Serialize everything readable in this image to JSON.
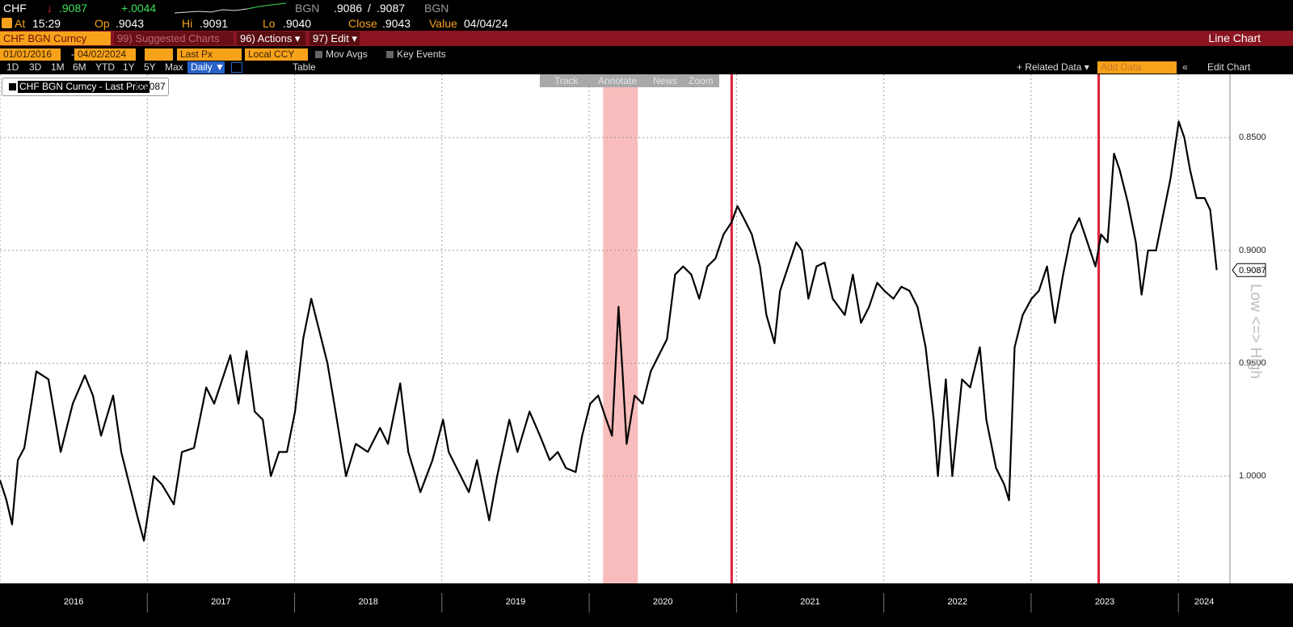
{
  "header": {
    "ticker": "CHF",
    "arrow": "↓",
    "last": ".9087",
    "change": "+.0044",
    "source": "BGN",
    "bid": ".9086",
    "slash": "/",
    "ask": ".9087",
    "source_right": "BGN",
    "stats": [
      {
        "label": "At",
        "value": "15:29"
      },
      {
        "label": "Op",
        "value": ".9043"
      },
      {
        "label": "Hi",
        "value": ".9091"
      },
      {
        "label": "Lo",
        "value": ".9040"
      },
      {
        "label": "Close",
        "value": ".9043"
      },
      {
        "label": "Value",
        "value": "04/04/24"
      }
    ]
  },
  "menu": {
    "security": "CHF BGN Curncy",
    "suggested": "99) Suggested Charts",
    "actions": "96) Actions ▾",
    "edit": "97) Edit ▾",
    "chart_kind": "Line Chart"
  },
  "settings": {
    "start": "01/01/2016",
    "dash": "-",
    "end": "04/02/2024",
    "field": "Last Px",
    "currency": "Local CCY",
    "mov_avgs": "Mov Avgs",
    "key_events": "Key Events"
  },
  "periods": [
    "1D",
    "3D",
    "1M",
    "6M",
    "YTD",
    "1Y",
    "5Y",
    "Max"
  ],
  "frequency": "Daily ▼",
  "table": "Table",
  "related": "+ Related Data ▾",
  "add_data": "Add Data",
  "collapse": "«",
  "edit_chart": "Edit Chart",
  "tools": [
    "Track",
    "Annotate",
    "News",
    "Zoom"
  ],
  "chart_data": {
    "type": "line",
    "x": [
      2016.0,
      2016.044,
      2016.082,
      2016.121,
      2016.165,
      2016.247,
      2016.329,
      2016.412,
      2016.494,
      2016.576,
      2016.631,
      2016.686,
      2016.768,
      2016.823,
      2016.878,
      2016.933,
      2016.977,
      2017.043,
      2017.098,
      2017.18,
      2017.235,
      2017.317,
      2017.4,
      2017.454,
      2017.564,
      2017.619,
      2017.674,
      2017.729,
      2017.784,
      2017.839,
      2017.894,
      2017.948,
      2018.003,
      2018.058,
      2018.113,
      2018.168,
      2018.223,
      2018.278,
      2018.349,
      2018.415,
      2018.497,
      2018.58,
      2018.634,
      2018.717,
      2018.772,
      2018.854,
      2018.936,
      2019.008,
      2019.046,
      2019.128,
      2019.183,
      2019.238,
      2019.321,
      2019.375,
      2019.458,
      2019.513,
      2019.595,
      2019.666,
      2019.732,
      2019.787,
      2019.842,
      2019.908,
      2019.952,
      2020.007,
      2020.061,
      2020.116,
      2020.155,
      2020.199,
      2020.226,
      2020.254,
      2020.308,
      2020.363,
      2020.418,
      2020.473,
      2020.528,
      2020.583,
      2020.638,
      2020.693,
      2020.747,
      2020.802,
      2020.857,
      2020.912,
      2020.967,
      2021.006,
      2021.049,
      2021.104,
      2021.159,
      2021.203,
      2021.258,
      2021.296,
      2021.351,
      2021.406,
      2021.444,
      2021.488,
      2021.543,
      2021.598,
      2021.653,
      2021.735,
      2021.79,
      2021.845,
      2021.9,
      2021.955,
      2022.004,
      2022.065,
      2022.119,
      2022.174,
      2022.229,
      2022.284,
      2022.339,
      2022.367,
      2022.421,
      2022.465,
      2022.531,
      2022.586,
      2022.652,
      2022.696,
      2022.762,
      2022.817,
      2022.85,
      2022.888,
      2022.943,
      2023.003,
      2023.053,
      2023.108,
      2023.162,
      2023.217,
      2023.272,
      2023.327,
      2023.382,
      2023.437,
      2023.475,
      2023.519,
      2023.563,
      2023.601,
      2023.656,
      2023.711,
      2023.75,
      2023.794,
      2023.848,
      2023.903,
      2023.947,
      2024.002,
      2024.04,
      2024.079,
      2024.123,
      2024.178,
      2024.216,
      2024.26
    ],
    "series": [
      {
        "name": "CHF BGN Curncy - Last Price",
        "color": "#000000",
        "values": [
          1.0018,
          1.0107,
          1.0214,
          0.9929,
          0.9875,
          0.9536,
          0.9571,
          0.9893,
          0.9679,
          0.9554,
          0.9643,
          0.9821,
          0.9643,
          0.9893,
          1.0036,
          1.0179,
          1.0286,
          1.0,
          1.0036,
          1.0125,
          0.9893,
          0.9875,
          0.9607,
          0.9679,
          0.9464,
          0.9679,
          0.9446,
          0.9714,
          0.975,
          1.0,
          0.9893,
          0.9893,
          0.9714,
          0.9393,
          0.9214,
          0.9357,
          0.95,
          0.9714,
          1.0,
          0.9857,
          0.9893,
          0.9786,
          0.9857,
          0.9589,
          0.9893,
          1.0071,
          0.9929,
          0.975,
          0.9893,
          1.0,
          1.0071,
          0.9929,
          1.0196,
          1.0,
          0.975,
          0.9893,
          0.9714,
          0.9821,
          0.9929,
          0.9893,
          0.9964,
          0.9982,
          0.9821,
          0.9679,
          0.9643,
          0.975,
          0.9821,
          0.925,
          0.9536,
          0.9857,
          0.9643,
          0.9679,
          0.9536,
          0.9464,
          0.9393,
          0.9107,
          0.9071,
          0.9107,
          0.9214,
          0.9071,
          0.9036,
          0.8929,
          0.8875,
          0.8804,
          0.8857,
          0.8929,
          0.9071,
          0.9286,
          0.9411,
          0.9179,
          0.9071,
          0.8964,
          0.9,
          0.9214,
          0.9071,
          0.9054,
          0.9214,
          0.9286,
          0.9107,
          0.9321,
          0.925,
          0.9143,
          0.9179,
          0.9214,
          0.9161,
          0.9179,
          0.925,
          0.9429,
          0.975,
          1.0,
          0.9571,
          1.0,
          0.9571,
          0.9607,
          0.9429,
          0.975,
          0.9964,
          1.0036,
          1.0107,
          0.9429,
          0.9286,
          0.9214,
          0.9179,
          0.9071,
          0.9321,
          0.9107,
          0.8929,
          0.8857,
          0.8964,
          0.9071,
          0.8929,
          0.8964,
          0.8571,
          0.8643,
          0.8786,
          0.8964,
          0.9196,
          0.9,
          0.9,
          0.8821,
          0.8679,
          0.8429,
          0.85,
          0.8643,
          0.8768,
          0.8768,
          0.8821,
          0.9087
        ]
      }
    ],
    "last_value": {
      "value": 0.9087,
      "label": "0.9087"
    },
    "xlim": [
      2016,
      2024.35
    ],
    "xticks": [
      {
        "value": 2016,
        "label": "2016"
      },
      {
        "value": 2017,
        "label": "2017"
      },
      {
        "value": 2018,
        "label": "2018"
      },
      {
        "value": 2019,
        "label": "2019"
      },
      {
        "value": 2020,
        "label": "2020"
      },
      {
        "value": 2021,
        "label": "2021"
      },
      {
        "value": 2022,
        "label": "2022"
      },
      {
        "value": 2023,
        "label": "2023"
      },
      {
        "value": 2024,
        "label": "2024"
      }
    ],
    "ylim": [
      0.822,
      1.0475
    ],
    "y_inverted": true,
    "yticks": [
      {
        "value": 0.85,
        "label": "0.8500"
      },
      {
        "value": 0.9,
        "label": "0.9000"
      },
      {
        "value": 0.95,
        "label": "0.9500"
      },
      {
        "value": 1.0,
        "label": "1.0000"
      }
    ],
    "grid": true,
    "axis_note": "Low <=> High",
    "event_lines": [
      2020.967,
      2023.459
    ],
    "event_color": "#e0203a",
    "highlight_band": [
      2020.094,
      2020.33
    ],
    "highlight_color": "#f9bcbc"
  }
}
